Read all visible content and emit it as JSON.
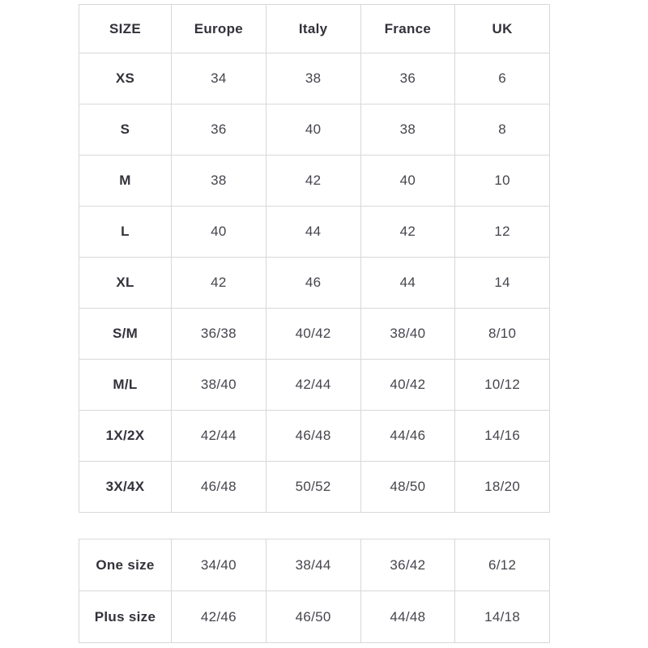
{
  "colors": {
    "background": "#ffffff",
    "border": "#d8d8d8",
    "header_text": "#32323a",
    "value_text": "#45454d"
  },
  "tables": [
    {
      "name": "international-size-conversion",
      "columns": [
        "SIZE",
        "Europe",
        "Italy",
        "France",
        "UK"
      ],
      "rows": [
        [
          "XS",
          "34",
          "38",
          "36",
          "6"
        ],
        [
          "S",
          "36",
          "40",
          "38",
          "8"
        ],
        [
          "M",
          "38",
          "42",
          "40",
          "10"
        ],
        [
          "L",
          "40",
          "44",
          "42",
          "12"
        ],
        [
          "XL",
          "42",
          "46",
          "44",
          "14"
        ],
        [
          "S/M",
          "36/38",
          "40/42",
          "38/40",
          "8/10"
        ],
        [
          "M/L",
          "38/40",
          "42/44",
          "40/42",
          "10/12"
        ],
        [
          "1X/2X",
          "42/44",
          "46/48",
          "44/46",
          "14/16"
        ],
        [
          "3X/4X",
          "46/48",
          "50/52",
          "48/50",
          "18/20"
        ]
      ]
    },
    {
      "name": "special-sizes",
      "rows": [
        [
          "One size",
          "34/40",
          "38/44",
          "36/42",
          "6/12"
        ],
        [
          "Plus size",
          "42/46",
          "46/50",
          "44/48",
          "14/18"
        ]
      ]
    }
  ]
}
